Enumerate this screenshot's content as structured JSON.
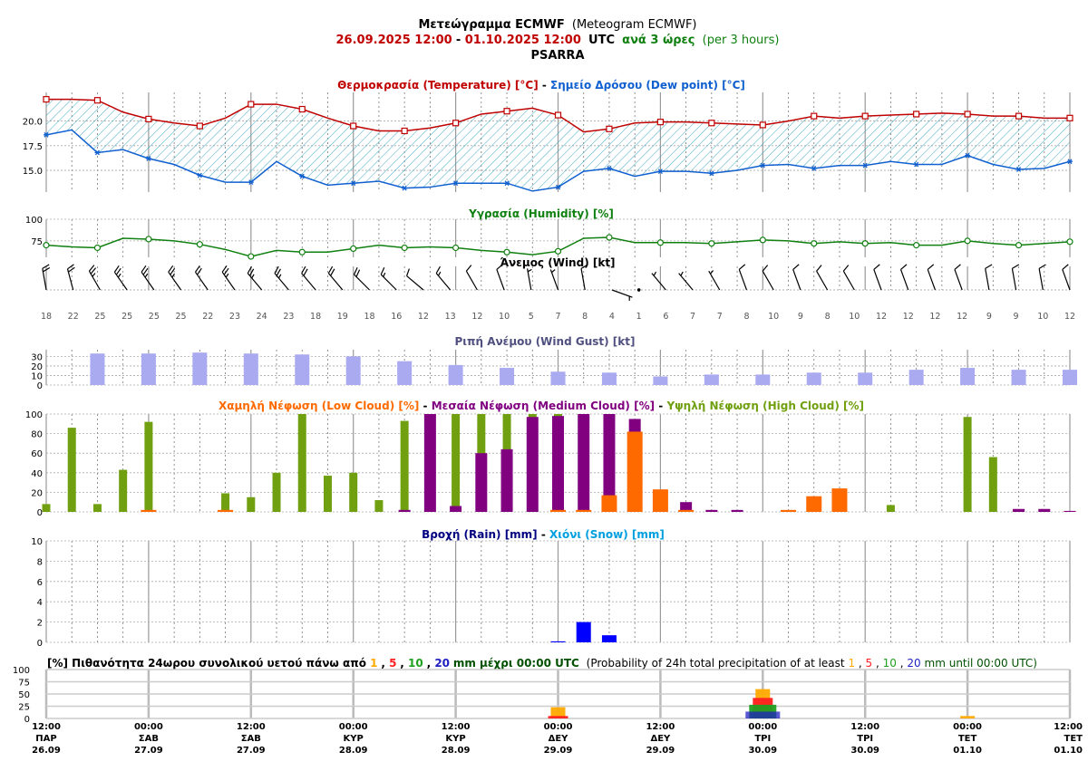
{
  "header": {
    "title_main": "Μετεώγραμμα ECMWF",
    "title_alt": "(Meteogram ECMWF)",
    "range_start": "26.09.2025 12:00",
    "range_sep": " - ",
    "range_end": "01.10.2025 12:00",
    "utc": "UTC",
    "step": "ανά 3 ώρες",
    "step_alt": "(per 3 hours)",
    "location": "PSARRA"
  },
  "colors": {
    "temperature": "#c00000",
    "dewpoint": "#1060d0",
    "humidity": "#108010",
    "gust": "#aaaaf0",
    "gust_title": "#505080",
    "low_cloud": "#ff6a00",
    "medium_cloud": "#800080",
    "high_cloud": "#70a010",
    "rain": "#0000ff",
    "rain_title": "#000080",
    "snow": "#00a0e0",
    "p1": "#ffaa00",
    "p5": "#ff2020",
    "p10": "#20a020",
    "p20": "#2020c0",
    "hatch": "#30a0c0"
  },
  "chart_data": [
    {
      "type": "line",
      "name": "temperature-dewpoint",
      "title_a": "Θερμοκρασία (Temperature) [°C]",
      "title_sep": " - ",
      "title_b": "Σημείο Δρόσου (Dew point) [°C]",
      "yticks": [
        "15.0",
        "17.5",
        "20.0"
      ],
      "ylim": [
        12.8,
        22.9
      ],
      "series": [
        {
          "name": "Temperature",
          "values": [
            22.2,
            22.2,
            22.1,
            20.9,
            20.2,
            19.8,
            19.5,
            20.3,
            21.7,
            21.7,
            21.2,
            20.3,
            19.5,
            19.0,
            19.0,
            19.3,
            19.8,
            20.7,
            21.0,
            21.3,
            20.6,
            18.9,
            19.2,
            19.8,
            19.9,
            19.9,
            19.8,
            19.7,
            19.6,
            20.0,
            20.5,
            20.3,
            20.5,
            20.6,
            20.7,
            20.8,
            20.7,
            20.5,
            20.5,
            20.3,
            20.3
          ]
        },
        {
          "name": "Dew point",
          "values": [
            18.6,
            19.1,
            16.8,
            17.1,
            16.2,
            15.6,
            14.5,
            13.8,
            13.8,
            15.9,
            14.4,
            13.5,
            13.7,
            13.9,
            13.2,
            13.3,
            13.7,
            13.7,
            13.7,
            12.9,
            13.3,
            14.9,
            15.2,
            14.4,
            14.9,
            14.9,
            14.7,
            15.0,
            15.5,
            15.6,
            15.2,
            15.5,
            15.5,
            15.9,
            15.6,
            15.6,
            16.5,
            15.6,
            15.1,
            15.2,
            15.9
          ]
        }
      ]
    },
    {
      "type": "line",
      "name": "humidity",
      "title": "Υγρασία (Humidity) [%]",
      "yticks": [
        "75",
        "100"
      ],
      "ylim": [
        56,
        100
      ],
      "values": [
        70,
        68,
        67,
        78,
        77,
        75,
        71,
        65,
        57,
        64,
        62,
        62,
        66,
        70,
        67,
        68,
        67,
        64,
        62,
        59,
        63,
        78,
        79,
        73,
        73,
        73,
        72,
        74,
        76,
        75,
        72,
        74,
        72,
        73,
        70,
        70,
        75,
        72,
        70,
        72,
        74
      ]
    },
    {
      "type": "wind",
      "name": "wind",
      "title": "Άνεμος (Wind) [kt]",
      "speeds": [
        "18",
        "22",
        "25",
        "25",
        "25",
        "25",
        "22",
        "23",
        "24",
        "23",
        "18",
        "19",
        "18",
        "16",
        "12",
        "13",
        "12",
        "10",
        "5",
        "7",
        "8",
        "4",
        "1",
        "6",
        "7",
        "7",
        "8",
        "10",
        "9",
        "8",
        "10",
        "12",
        "12",
        "12",
        "12",
        "9",
        "9",
        "10",
        "12"
      ],
      "directions": [
        350,
        345,
        330,
        325,
        325,
        325,
        325,
        325,
        320,
        320,
        320,
        320,
        315,
        315,
        310,
        320,
        330,
        340,
        350,
        340,
        350,
        110,
        20,
        320,
        320,
        330,
        340,
        330,
        340,
        330,
        330,
        340,
        340,
        340,
        340,
        350,
        350,
        350,
        340
      ]
    },
    {
      "type": "bar",
      "name": "wind-gust",
      "title": "Ριπή Ανέμου (Wind Gust) [kt]",
      "yticks": [
        "0",
        "10",
        "20",
        "30"
      ],
      "ylim": [
        0,
        37
      ],
      "values": [
        33,
        33,
        34,
        33,
        32,
        30,
        25,
        21,
        18,
        14,
        13,
        9,
        11,
        11,
        13,
        13,
        16,
        18,
        16,
        16
      ]
    },
    {
      "type": "bar",
      "name": "cloud",
      "title_low": "Χαμηλή Νέφωση (Low Cloud) [%]",
      "title_medium": "Μεσαία Νέφωση (Medium Cloud) [%]",
      "title_high": "Υψηλή Νέφωση (High Cloud) [%]",
      "title_sep": " - ",
      "yticks": [
        "0",
        "20",
        "40",
        "60",
        "80",
        "100"
      ],
      "ylim": [
        0,
        100
      ],
      "series": [
        {
          "name": "Low",
          "values": [
            0,
            0,
            0,
            0,
            2,
            0,
            0,
            2,
            0,
            0,
            0,
            0,
            0,
            0,
            0,
            0,
            0,
            0,
            0,
            0,
            2,
            2,
            17,
            82,
            23,
            2,
            0,
            0,
            0,
            2,
            16,
            24,
            0,
            0,
            0,
            0,
            0,
            0,
            0,
            0,
            0
          ]
        },
        {
          "name": "Medium",
          "values": [
            0,
            0,
            0,
            0,
            0,
            0,
            0,
            0,
            0,
            0,
            0,
            0,
            0,
            0,
            2,
            100,
            6,
            60,
            64,
            97,
            98,
            100,
            100,
            95,
            0,
            10,
            2,
            2,
            0,
            0,
            0,
            0,
            0,
            0,
            0,
            0,
            0,
            0,
            3,
            3,
            1
          ]
        },
        {
          "name": "High",
          "values": [
            8,
            86,
            8,
            43,
            92,
            0,
            0,
            19,
            15,
            40,
            100,
            37,
            40,
            12,
            93,
            100,
            100,
            100,
            100,
            100,
            100,
            50,
            0,
            0,
            0,
            0,
            0,
            0,
            0,
            0,
            0,
            0,
            0,
            7,
            0,
            0,
            97,
            56,
            0,
            0,
            0
          ]
        }
      ]
    },
    {
      "type": "bar",
      "name": "precipitation",
      "title_rain": "Βροχή (Rain) [mm]",
      "title_sep": " - ",
      "title_snow": "Χιόνι (Snow) [mm]",
      "yticks": [
        "0",
        "2",
        "4",
        "6",
        "8",
        "10"
      ],
      "ylim": [
        0,
        10
      ],
      "series": [
        {
          "name": "Rain",
          "values": [
            0,
            0,
            0,
            0,
            0,
            0,
            0,
            0,
            0,
            0,
            0,
            0,
            0,
            0,
            0,
            0,
            0,
            0,
            0,
            0,
            0.1,
            2.0,
            0.7,
            0,
            0,
            0,
            0,
            0,
            0,
            0,
            0,
            0,
            0,
            0,
            0,
            0,
            0,
            0,
            0,
            0,
            0
          ]
        },
        {
          "name": "Snow",
          "values": [
            0,
            0,
            0,
            0,
            0,
            0,
            0,
            0,
            0,
            0,
            0,
            0,
            0,
            0,
            0,
            0,
            0,
            0,
            0,
            0,
            0,
            0,
            0,
            0,
            0,
            0,
            0,
            0,
            0,
            0,
            0,
            0,
            0,
            0,
            0,
            0,
            0,
            0,
            0,
            0,
            0
          ]
        }
      ]
    },
    {
      "type": "bar",
      "name": "precip-probability",
      "title_pre": "[%] Πιθανότητα 24ωρου συνολικού υετού πάνω από ",
      "title_post_gr": "mm μέχρι 00:00 UTC",
      "title_en_pre": "(Probability of 24h total precipitation of at least ",
      "title_en_post": "mm until 00:00 UTC)",
      "title_sep": ", ",
      "thresholds": [
        "1",
        "5",
        "10",
        "20"
      ],
      "yticks": [
        "0",
        "25",
        "50",
        "75",
        "100"
      ],
      "ylim": [
        0,
        100
      ],
      "groups": [
        {
          "day": "29.09",
          "p1": 23,
          "p5": 5,
          "p10": 0,
          "p20": 0
        },
        {
          "day": "30.09",
          "p1": 60,
          "p5": 42,
          "p10": 28,
          "p20": 14
        },
        {
          "day": "01.10",
          "p1": 5,
          "p5": 0,
          "p10": 0,
          "p20": 0
        }
      ]
    }
  ],
  "time_axis": [
    {
      "time": "12:00",
      "day": "ΠΑΡ",
      "date": "26.09"
    },
    {
      "time": "00:00",
      "day": "ΣΑΒ",
      "date": "27.09"
    },
    {
      "time": "12:00",
      "day": "ΣΑΒ",
      "date": "27.09"
    },
    {
      "time": "00:00",
      "day": "ΚΥΡ",
      "date": "28.09"
    },
    {
      "time": "12:00",
      "day": "ΚΥΡ",
      "date": "28.09"
    },
    {
      "time": "00:00",
      "day": "ΔΕΥ",
      "date": "29.09"
    },
    {
      "time": "12:00",
      "day": "ΔΕΥ",
      "date": "29.09"
    },
    {
      "time": "00:00",
      "day": "ΤΡΙ",
      "date": "30.09"
    },
    {
      "time": "12:00",
      "day": "ΤΡΙ",
      "date": "30.09"
    },
    {
      "time": "00:00",
      "day": "ΤΕΤ",
      "date": "01.10"
    },
    {
      "time": "12:00",
      "day": "ΤΕΤ",
      "date": "01.10"
    }
  ]
}
